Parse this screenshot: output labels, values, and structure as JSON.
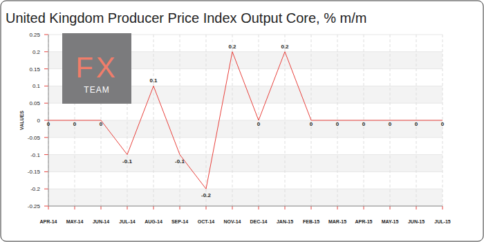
{
  "chart_data": {
    "type": "line",
    "title": "United Kingdom Producer Price Index Output Core, % m/m",
    "y_label": "VALUES",
    "annotations": [
      "FX",
      "TEAM"
    ],
    "categories": [
      "APR-14",
      "MAY-14",
      "JUN-14",
      "JUL-14",
      "AUG-14",
      "SEP-14",
      "OCT-14",
      "NOV-14",
      "DEC-14",
      "JAN-15",
      "FEB-15",
      "MAR-15",
      "APR-15",
      "MAY-15",
      "JUN-15",
      "JUL-15"
    ],
    "values": [
      0,
      0,
      0,
      -0.1,
      0.1,
      -0.1,
      -0.2,
      0.2,
      0,
      0.2,
      0,
      0,
      0,
      0,
      0,
      0
    ],
    "color": "#e8413c",
    "ylim": [
      -0.25,
      0.25
    ],
    "yticks": [
      -0.25,
      -0.2,
      -0.15,
      -0.1,
      -0.05,
      0,
      0.05,
      0.1,
      0.15,
      0.2,
      0.25
    ],
    "grid": true,
    "data_labels": true
  }
}
